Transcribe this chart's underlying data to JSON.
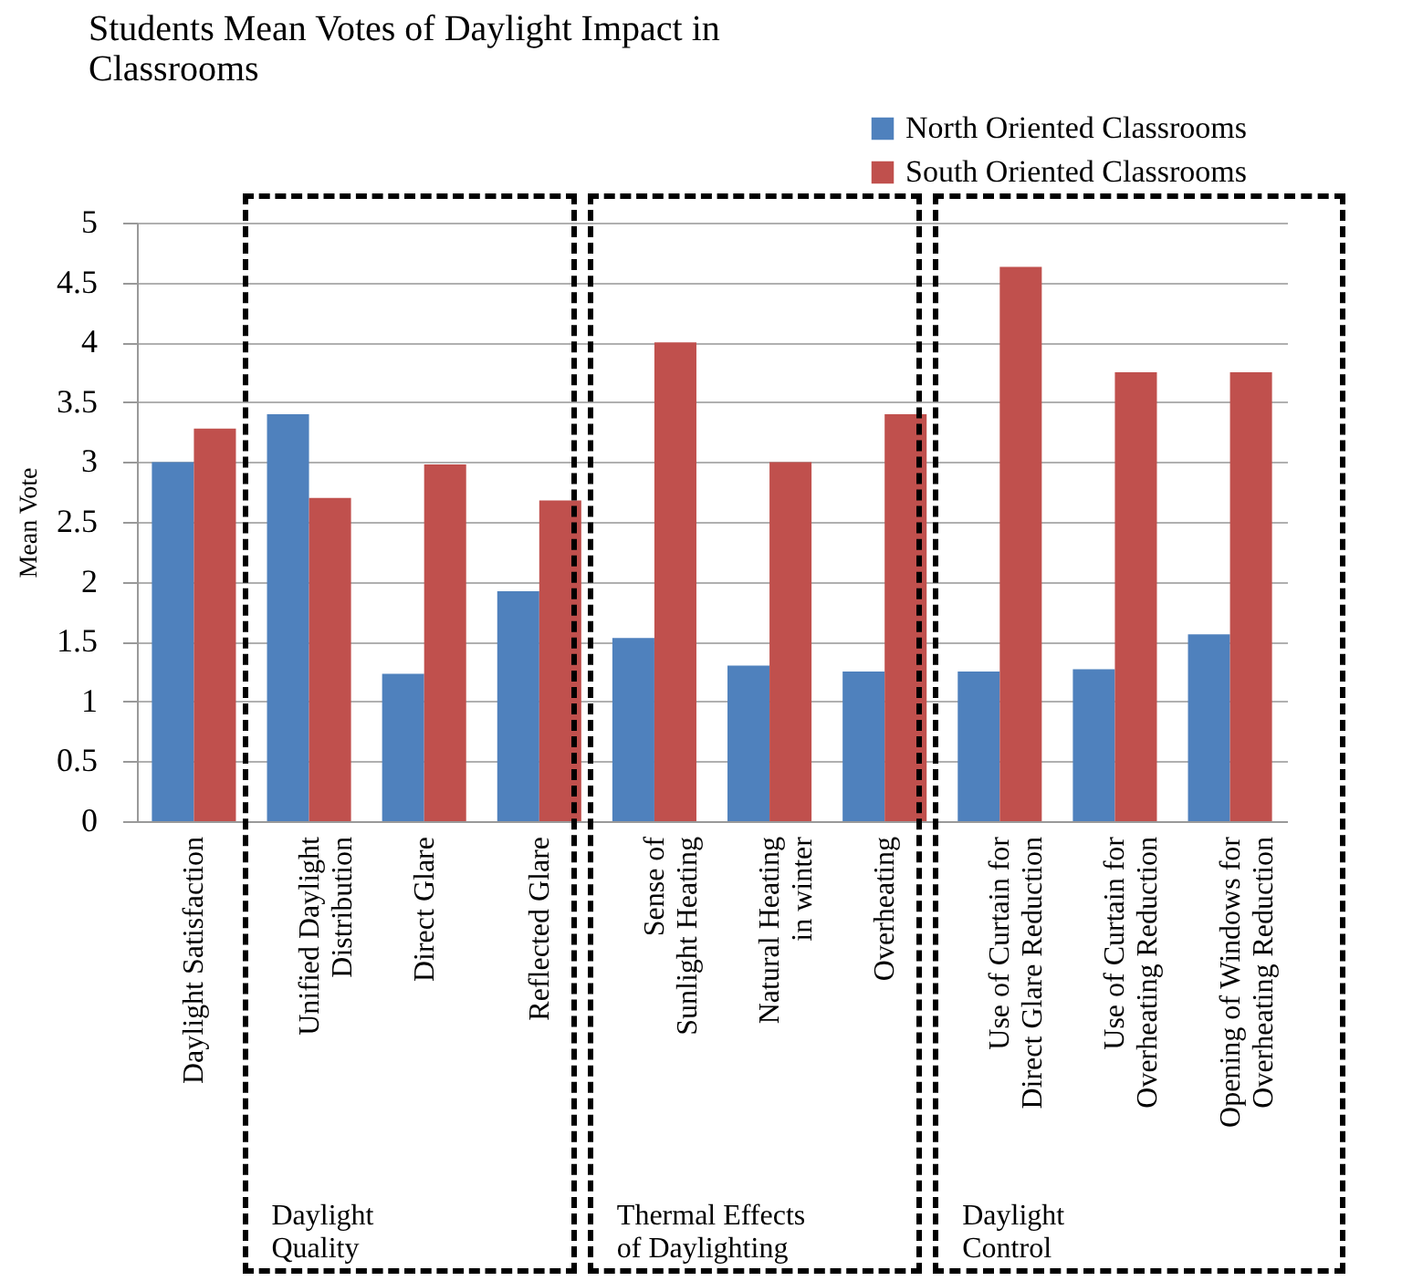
{
  "chart_data": {
    "type": "bar",
    "title": "Students Mean Votes of Daylight Impact in\nClassrooms",
    "ylabel": "Mean Vote",
    "categories": [
      "Daylight Satisfaction",
      "Unified Daylight\nDistribution",
      "Direct Glare",
      "Reflected Glare",
      "Sense of\nSunlight Heating",
      "Natural Heating\nin winter",
      "Overheating",
      "Use of Curtain for\nDirect Glare Reduction",
      "Use of Curtain for\nOverheating Reduction",
      "Opening of Windows for\nOverheating Reduction"
    ],
    "series": [
      {
        "name": "North Oriented Classrooms",
        "color": "#4f81bd",
        "values": [
          3.0,
          3.4,
          1.23,
          1.92,
          1.53,
          1.3,
          1.25,
          1.25,
          1.27,
          1.56
        ]
      },
      {
        "name": "South Oriented Classrooms",
        "color": "#c0504d",
        "values": [
          3.28,
          2.7,
          2.98,
          2.68,
          4.0,
          3.0,
          3.4,
          4.63,
          3.75,
          3.75
        ]
      }
    ],
    "ylim": [
      0,
      5
    ],
    "yticks": [
      0,
      0.5,
      1,
      1.5,
      2,
      2.5,
      3,
      3.5,
      4,
      4.5,
      5
    ],
    "grid": "y",
    "legend": "top right",
    "annotations": [
      "Daylight\nQuality",
      "Thermal Effects\nof Daylighting",
      "Daylight\nControl"
    ]
  }
}
